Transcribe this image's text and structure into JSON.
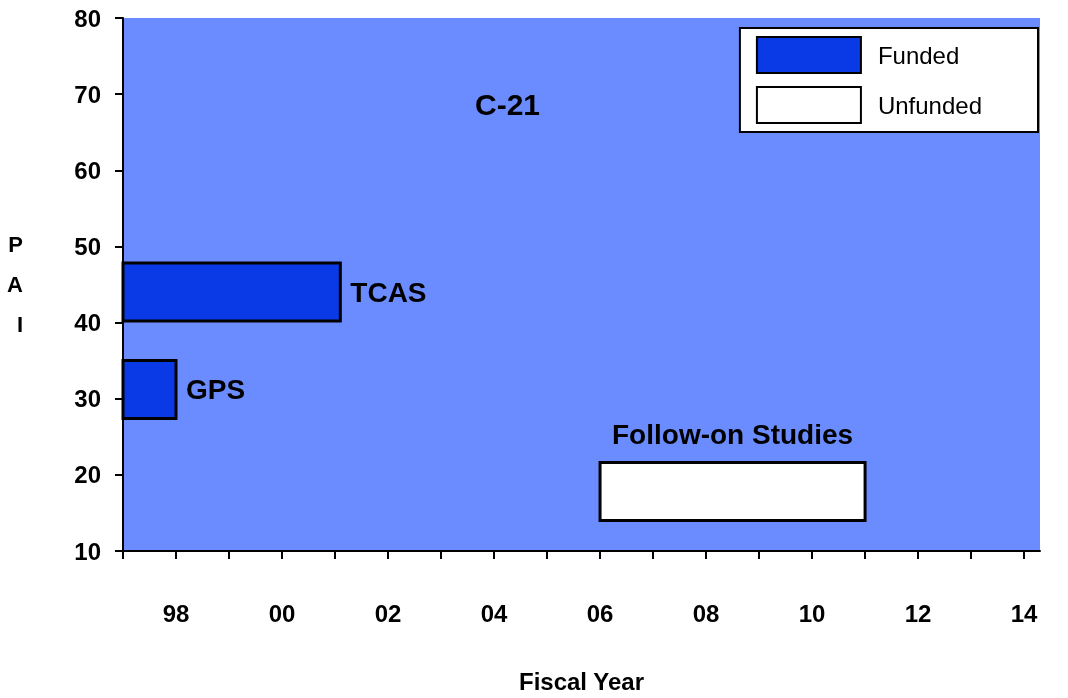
{
  "chart_data": {
    "type": "bar",
    "orientation": "horizontal",
    "title": "C-21",
    "xlabel": "Fiscal Year",
    "ylabel": "PAI",
    "series": [
      {
        "name": "Funded",
        "color": "#0a3ae6",
        "x": [
          44,
          31.2
        ],
        "base": [
          1997,
          1997
        ],
        "values": [
          4.1,
          1
        ]
      },
      {
        "name": "Unfunded",
        "color": "#ffffff",
        "x": [
          17.8
        ],
        "base": [
          2006
        ],
        "values": [
          5
        ]
      }
    ],
    "xlim": [
      1997,
      2014.3
    ],
    "xticks": [
      {
        "value": 1997,
        "label": null
      },
      {
        "value": 1998,
        "label": "98"
      },
      {
        "value": 1999,
        "label": null
      },
      {
        "value": 2000,
        "label": "00"
      },
      {
        "value": 2001,
        "label": null
      },
      {
        "value": 2002,
        "label": "02"
      },
      {
        "value": 2003,
        "label": null
      },
      {
        "value": 2004,
        "label": "04"
      },
      {
        "value": 2005,
        "label": null
      },
      {
        "value": 2006,
        "label": "06"
      },
      {
        "value": 2007,
        "label": null
      },
      {
        "value": 2008,
        "label": "08"
      },
      {
        "value": 2009,
        "label": null
      },
      {
        "value": 2010,
        "label": "10"
      },
      {
        "value": 2011,
        "label": null
      },
      {
        "value": 2012,
        "label": "12"
      },
      {
        "value": 2013,
        "label": null
      },
      {
        "value": 2014,
        "label": "14"
      }
    ],
    "ylim": [
      10,
      80
    ],
    "yticks": [
      10,
      20,
      30,
      40,
      50,
      60,
      70,
      80
    ],
    "annotations": [
      "TCAS",
      "GPS",
      "Follow-on Studies"
    ],
    "legend": "top right",
    "grid": false
  }
}
